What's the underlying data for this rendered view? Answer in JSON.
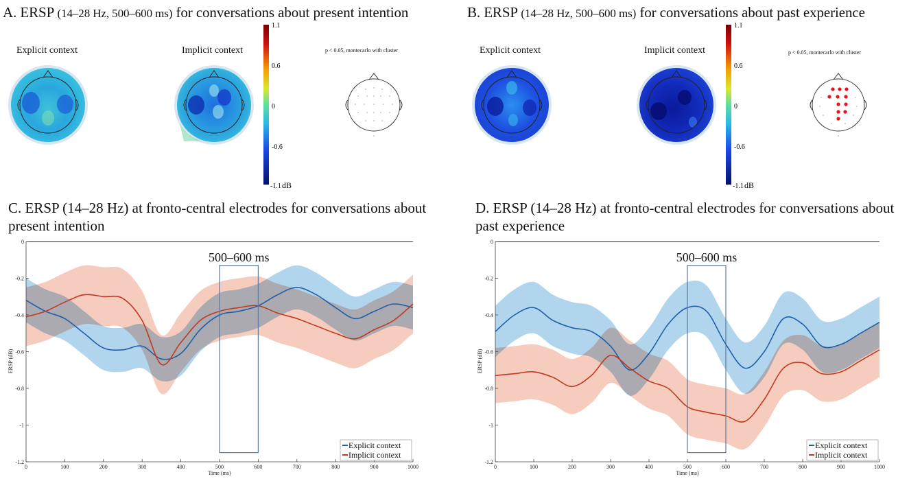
{
  "panels": {
    "A": {
      "title_main": "A. ERSP ",
      "title_small": "(14–28 Hz, 500–600 ms)",
      "title_tail": " for conversations about present intention",
      "explicit_label": "Explicit context",
      "implicit_label": "Implicit context",
      "sig_note": "p < 0.05, montecarlo with cluster"
    },
    "B": {
      "title_main": "B. ERSP ",
      "title_small": "(14–28 Hz, 500–600 ms)",
      "title_tail": " for conversations about past experience",
      "explicit_label": "Explicit context",
      "implicit_label": "Implicit context",
      "sig_note": "p < 0.05, montecarlo with cluster"
    }
  },
  "colorbar": {
    "ticks": [
      "1.1",
      "0.6",
      "0",
      "-0.6",
      "-1.1"
    ],
    "unit": "dB"
  },
  "colors": {
    "explicit": "#1f5fa8",
    "implicit": "#c0391f",
    "explicit_band": "#9ecae8",
    "implicit_band": "#f2b8a6",
    "significant_electrode": "#e8141c"
  },
  "chart_data": [
    {
      "type": "line",
      "title": "C. ERSP (14–28 Hz) at fronto-central electrodes for conversations about present intention",
      "xlabel": "Time (ms)",
      "ylabel": "ERSP (dB)",
      "xlim": [
        0,
        1000
      ],
      "ylim": [
        -1.2,
        0
      ],
      "xticks": [
        0,
        100,
        200,
        300,
        400,
        500,
        600,
        700,
        800,
        900,
        1000
      ],
      "yticks": [
        0,
        -0.2,
        -0.4,
        -0.6,
        -0.8,
        -1,
        -1.2
      ],
      "ytick_labels": [
        "0",
        "-0.2",
        "-0.4",
        "-0.6",
        "-0.8",
        "-1",
        "-1.2"
      ],
      "window": {
        "label": "500–600 ms",
        "x": [
          500,
          600
        ],
        "y": [
          -1.15,
          -0.13
        ]
      },
      "legend": [
        "Explicit context",
        "Implicit context"
      ],
      "legend_position": "bottom-right",
      "series": [
        {
          "name": "Explicit context",
          "band": 0.12,
          "x": [
            0,
            50,
            100,
            150,
            200,
            250,
            300,
            350,
            400,
            450,
            500,
            550,
            600,
            650,
            700,
            750,
            800,
            850,
            900,
            950,
            1000
          ],
          "y": [
            -0.32,
            -0.38,
            -0.42,
            -0.5,
            -0.58,
            -0.59,
            -0.57,
            -0.64,
            -0.61,
            -0.48,
            -0.4,
            -0.38,
            -0.35,
            -0.29,
            -0.25,
            -0.29,
            -0.36,
            -0.42,
            -0.38,
            -0.34,
            -0.36
          ]
        },
        {
          "name": "Implicit context",
          "band": 0.16,
          "x": [
            0,
            50,
            100,
            150,
            200,
            250,
            300,
            350,
            400,
            450,
            500,
            550,
            600,
            650,
            700,
            750,
            800,
            850,
            900,
            950,
            1000
          ],
          "y": [
            -0.41,
            -0.38,
            -0.33,
            -0.29,
            -0.3,
            -0.31,
            -0.43,
            -0.67,
            -0.55,
            -0.43,
            -0.38,
            -0.36,
            -0.35,
            -0.39,
            -0.42,
            -0.46,
            -0.5,
            -0.53,
            -0.48,
            -0.43,
            -0.34
          ]
        }
      ]
    },
    {
      "type": "line",
      "title": "D. ERSP (14–28 Hz) at fronto-central electrodes for conversations about past experience",
      "xlabel": "Time (ms)",
      "ylabel": "ERSP (dB)",
      "xlim": [
        0,
        1000
      ],
      "ylim": [
        -1.2,
        0
      ],
      "xticks": [
        0,
        100,
        200,
        300,
        400,
        500,
        600,
        700,
        800,
        900,
        1000
      ],
      "yticks": [
        0,
        -0.2,
        -0.4,
        -0.6,
        -0.8,
        -1,
        -1.2
      ],
      "ytick_labels": [
        "0",
        "-0.2",
        "-0.4",
        "-0.6",
        "-0.8",
        "-1",
        "-1.2"
      ],
      "window": {
        "label": "500–600 ms",
        "x": [
          500,
          600
        ],
        "y": [
          -1.15,
          -0.13
        ]
      },
      "legend": [
        "Explicit context",
        "Implicit context"
      ],
      "legend_position": "bottom-right",
      "series": [
        {
          "name": "Explicit context",
          "band": 0.14,
          "x": [
            0,
            50,
            100,
            150,
            200,
            250,
            300,
            350,
            400,
            450,
            500,
            550,
            600,
            650,
            700,
            750,
            800,
            850,
            900,
            950,
            1000
          ],
          "y": [
            -0.49,
            -0.4,
            -0.36,
            -0.43,
            -0.47,
            -0.49,
            -0.57,
            -0.7,
            -0.61,
            -0.45,
            -0.36,
            -0.38,
            -0.56,
            -0.69,
            -0.6,
            -0.42,
            -0.45,
            -0.57,
            -0.56,
            -0.5,
            -0.44
          ]
        },
        {
          "name": "Implicit context",
          "band": 0.15,
          "x": [
            0,
            50,
            100,
            150,
            200,
            250,
            300,
            350,
            400,
            450,
            500,
            550,
            600,
            650,
            700,
            750,
            800,
            850,
            900,
            950,
            1000
          ],
          "y": [
            -0.73,
            -0.72,
            -0.71,
            -0.74,
            -0.79,
            -0.73,
            -0.62,
            -0.69,
            -0.76,
            -0.8,
            -0.9,
            -0.93,
            -0.95,
            -0.98,
            -0.86,
            -0.69,
            -0.66,
            -0.72,
            -0.71,
            -0.65,
            -0.59
          ]
        }
      ]
    }
  ]
}
